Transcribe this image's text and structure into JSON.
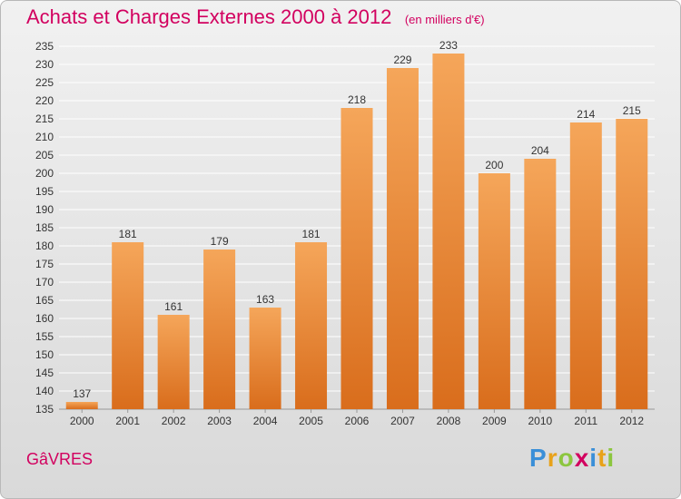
{
  "header": {
    "title": "Achats et Charges Externes 2000 à 2012",
    "unit": "(en milliers d'€)"
  },
  "footer": {
    "commune": "GâVRES",
    "brand": [
      "P",
      "r",
      "o",
      "x",
      "i",
      "t",
      "i"
    ],
    "brand_colors": [
      "#3a8fd8",
      "#e8a21a",
      "#8cc63f",
      "#d2005f",
      "#3a8fd8",
      "#e8a21a",
      "#8cc63f"
    ]
  },
  "colors": {
    "bar_top": "#f5a65a",
    "bar_bottom": "#d96d1c",
    "grid": "#ffffff",
    "accent": "#d2005f"
  },
  "chart_data": {
    "type": "bar",
    "categories": [
      "2000",
      "2001",
      "2002",
      "2003",
      "2004",
      "2005",
      "2006",
      "2007",
      "2008",
      "2009",
      "2010",
      "2011",
      "2012"
    ],
    "values": [
      137,
      181,
      161,
      179,
      163,
      181,
      218,
      229,
      233,
      200,
      204,
      214,
      215
    ],
    "yticks": [
      135,
      140,
      145,
      150,
      155,
      160,
      165,
      170,
      175,
      180,
      185,
      190,
      195,
      200,
      205,
      210,
      215,
      220,
      225,
      230,
      235
    ],
    "ylim": [
      135,
      235
    ],
    "grid": true,
    "legend": "none"
  }
}
